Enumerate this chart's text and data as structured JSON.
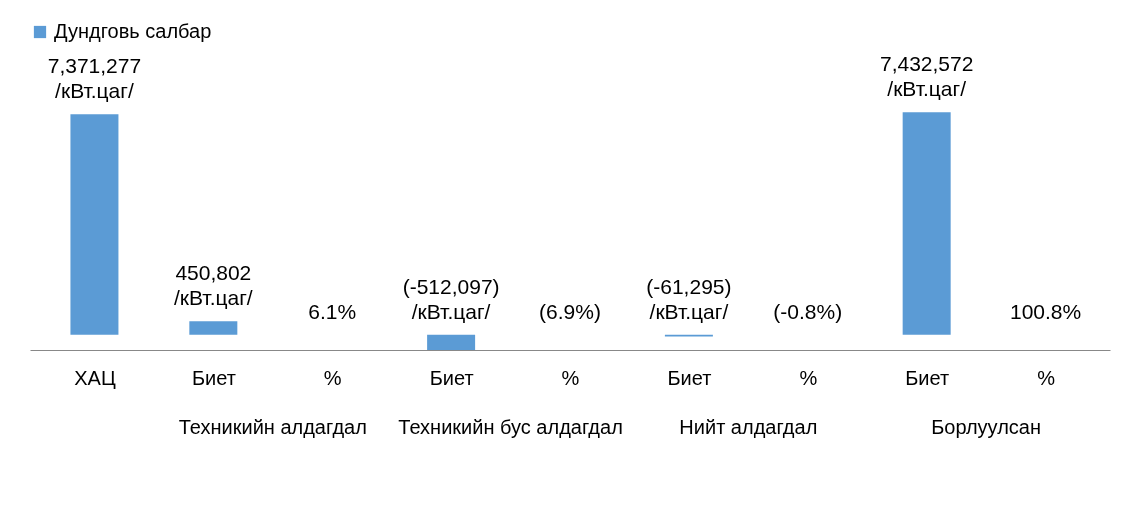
{
  "chart_data": {
    "type": "bar",
    "categories": [
      "ХАЦ",
      "Биет",
      "%",
      "Биет",
      "%",
      "Биет",
      "%",
      "Биет",
      "%"
    ],
    "series": [
      {
        "name": "Дундговь салбар",
        "color": "#5b9bd5",
        "values": [
          7371277,
          450802,
          6.1,
          -512097,
          -6.9,
          -61295,
          -0.8,
          7432572,
          100.8
        ],
        "value_labels": [
          "7,371,277\n/кВт.цаг/",
          "450,802\n/кВт.цаг/",
          "6.1%",
          "(-512,097)\n/кВт.цаг/",
          "(6.9%)",
          "(-61,295)\n/кВт.цаг/",
          "(-0.8%)",
          "7,432,572\n/кВт.цаг/",
          "100.8%"
        ]
      }
    ],
    "annotations": [
      "Техникийн алдагдал",
      "Техникийн бус алдагдал",
      "Нийт алдагдал",
      "Борлуулсан"
    ],
    "legend": "top",
    "grid": false
  }
}
